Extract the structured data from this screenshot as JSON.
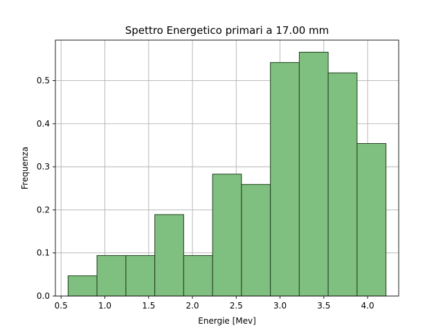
{
  "chart_data": {
    "type": "bar",
    "title": "Spettro Energetico primari a 17.00 mm",
    "xlabel": "Energie [Mev]",
    "ylabel": "Frequenza",
    "bin_edges": [
      0.58,
      0.91,
      1.24,
      1.57,
      1.9,
      2.23,
      2.56,
      2.89,
      3.22,
      3.55,
      3.88,
      4.21
    ],
    "values": [
      0.047,
      0.094,
      0.094,
      0.189,
      0.094,
      0.283,
      0.259,
      0.542,
      0.566,
      0.518,
      0.354
    ],
    "xlim": [
      0.435,
      4.355
    ],
    "ylim": [
      0,
      0.594
    ],
    "xticks": [
      "0.5",
      "1.0",
      "1.5",
      "2.0",
      "2.5",
      "3.0",
      "3.5",
      "4.0"
    ],
    "xtick_values": [
      0.5,
      1.0,
      1.5,
      2.0,
      2.5,
      3.0,
      3.5,
      4.0
    ],
    "yticks": [
      "0.0",
      "0.1",
      "0.2",
      "0.3",
      "0.4",
      "0.5"
    ],
    "ytick_values": [
      0.0,
      0.1,
      0.2,
      0.3,
      0.4,
      0.5
    ],
    "grid": true,
    "colors": {
      "bar_fill": "#7fbf7f",
      "bar_edge": "#1f3f1f",
      "grid": "#b0b0b0"
    }
  }
}
